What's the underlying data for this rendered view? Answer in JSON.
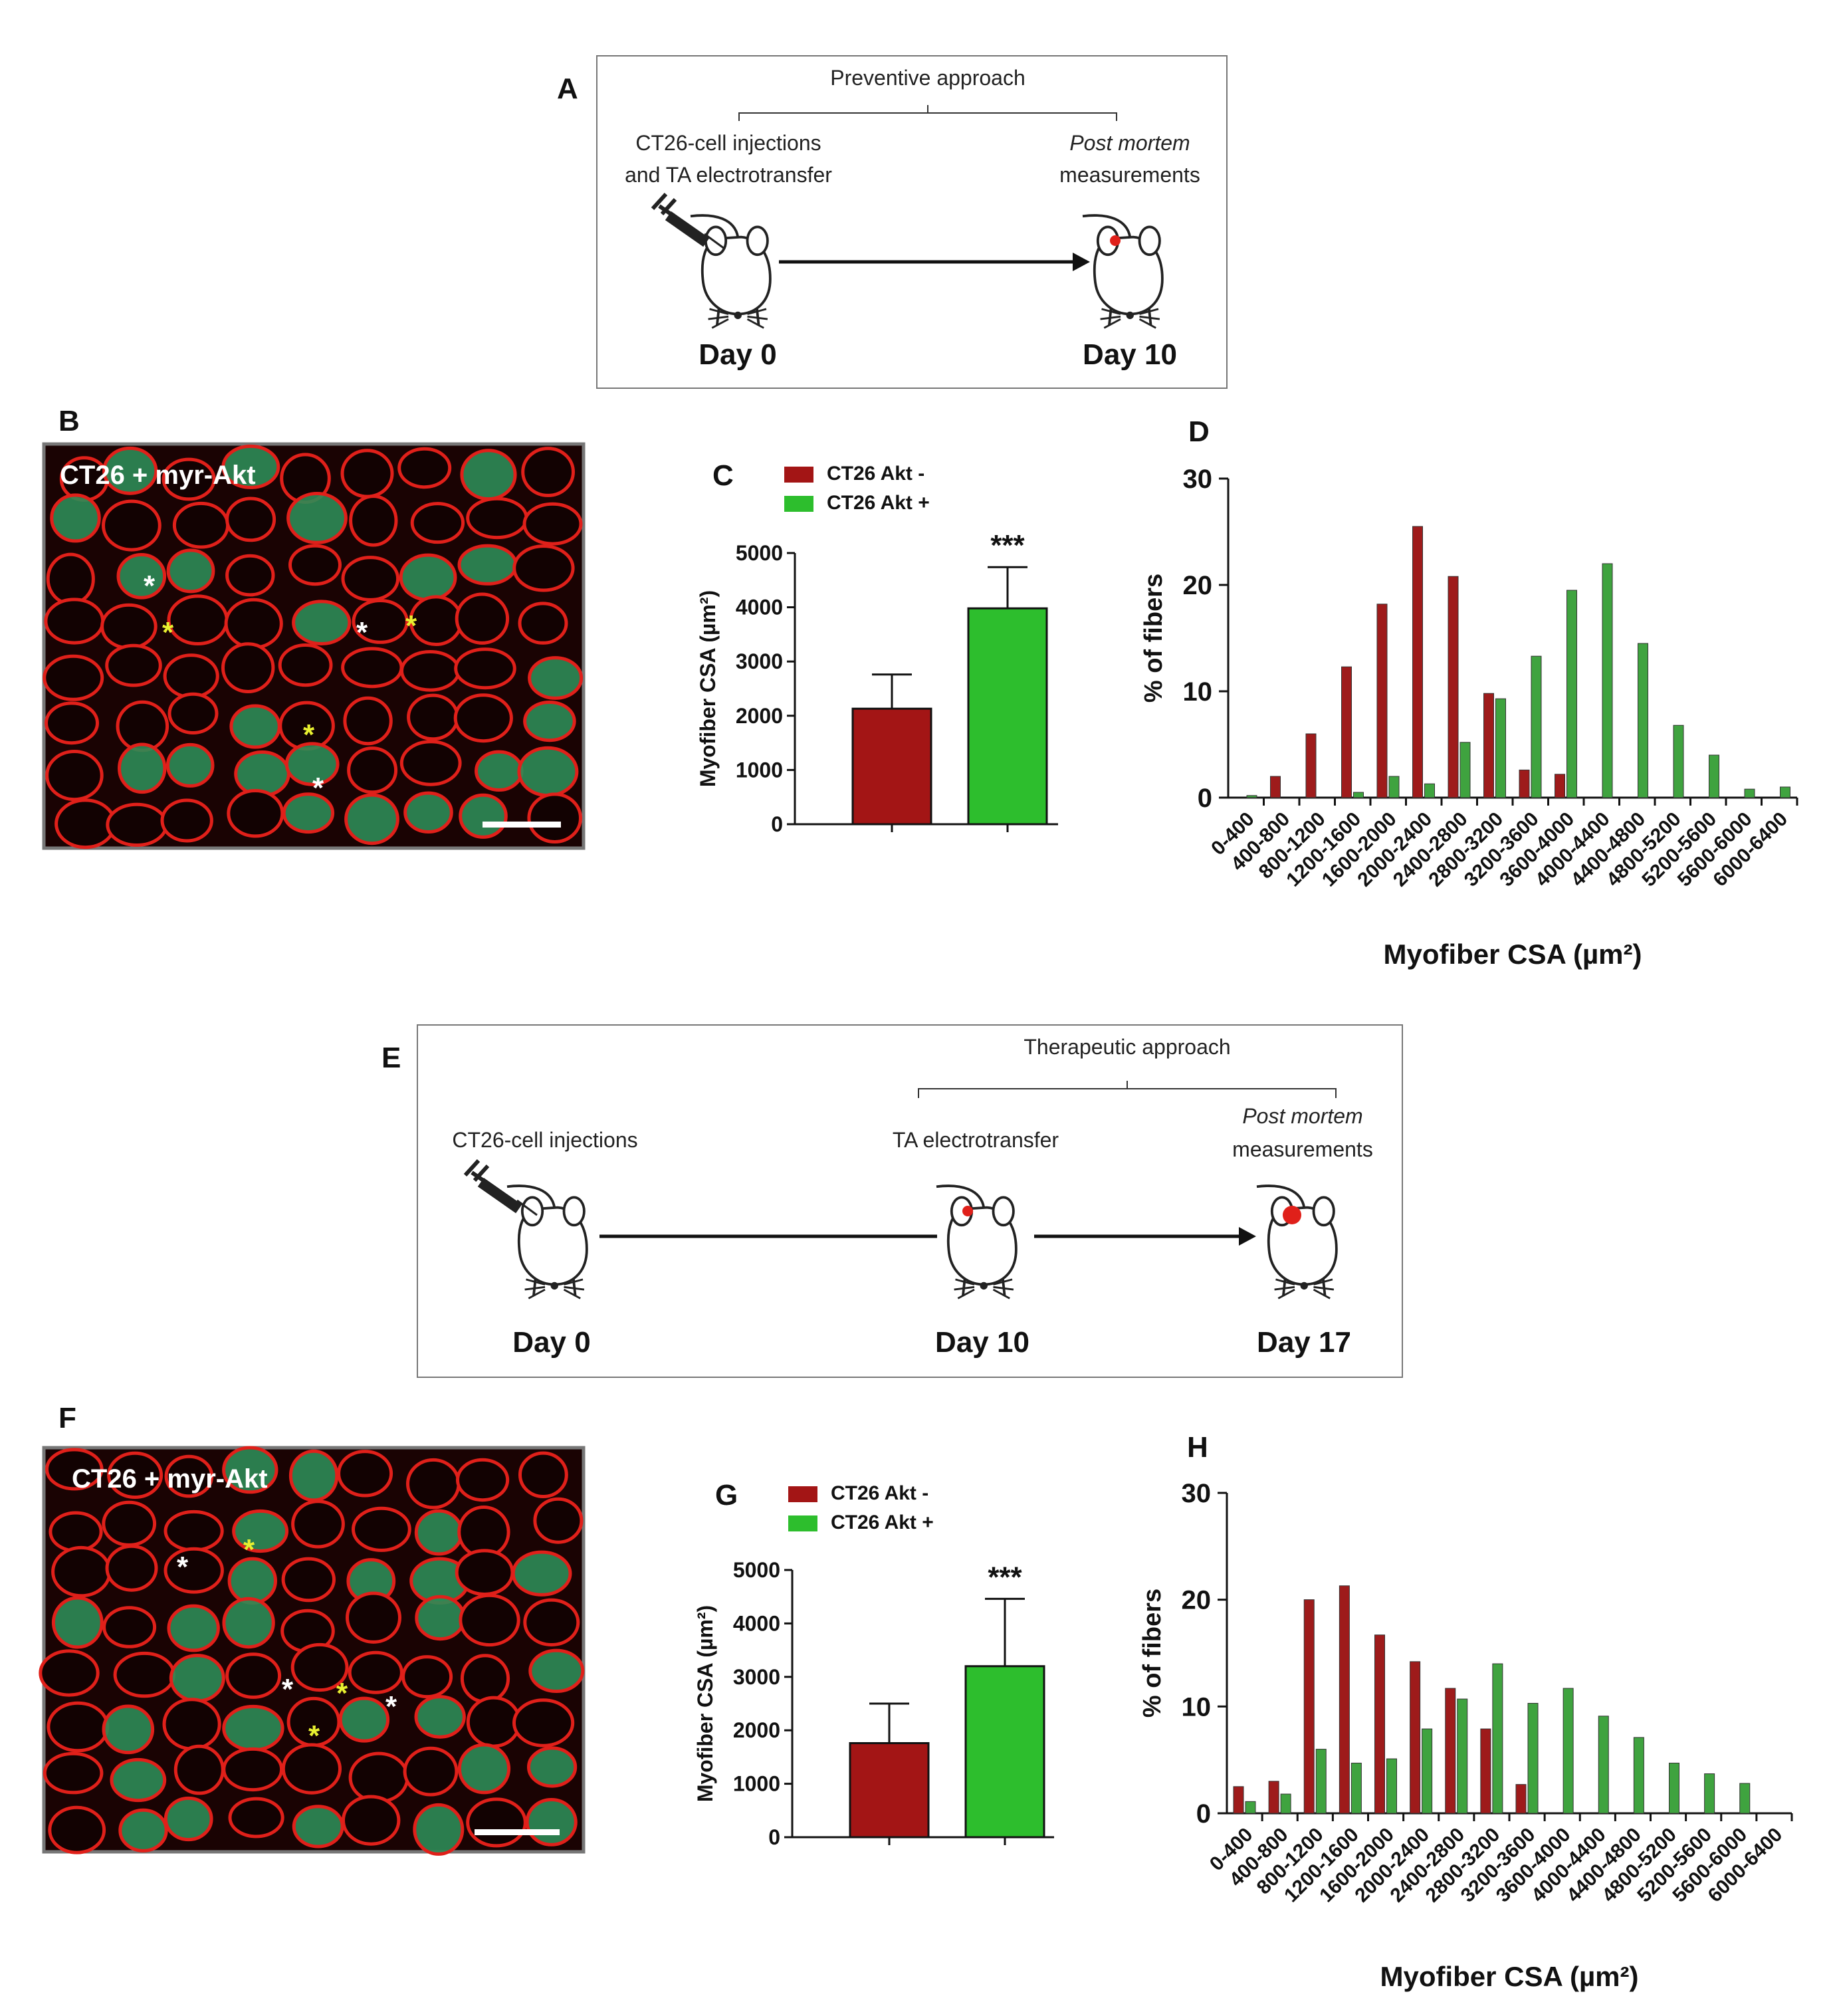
{
  "panels": {
    "A": {
      "letter": "A",
      "approach": "Preventive approach",
      "start_line1": "CT26-cell injections",
      "start_line2": "and TA electrotransfer",
      "end_line1": "Post mortem",
      "end_line2": "measurements",
      "day_start": "Day 0",
      "day_end": "Day 10"
    },
    "B": {
      "letter": "B",
      "image_label": "CT26 + myr-Akt"
    },
    "E": {
      "letter": "E",
      "approach": "Therapeutic approach",
      "start_label": "CT26-cell injections",
      "mid_label": "TA electrotransfer",
      "end_line1": "Post mortem",
      "end_line2": "measurements",
      "day_start": "Day 0",
      "day_mid": "Day 10",
      "day_end": "Day 17"
    },
    "F": {
      "letter": "F",
      "image_label": "CT26 + myr-Akt"
    },
    "C": {
      "letter": "C"
    },
    "D": {
      "letter": "D"
    },
    "G": {
      "letter": "G"
    },
    "H": {
      "letter": "H"
    }
  },
  "colors": {
    "akt_minus": "#A31515",
    "akt_plus": "#2DBE2D",
    "hist_minus": "#9E1B1B",
    "hist_plus": "#3FA33F",
    "membrane": "#E0201A",
    "fiber_green": "#2E8B57"
  },
  "chart_data": [
    {
      "panel": "C",
      "type": "bar",
      "categories": [
        "CT26 Akt -",
        "CT26 Akt +"
      ],
      "values": [
        2130,
        3980
      ],
      "errors": [
        630,
        760
      ],
      "ylabel": "Myofiber CSA (µm²)",
      "ylim": [
        0,
        5000
      ],
      "yticks": [
        "0",
        "1000",
        "2000",
        "3000",
        "4000",
        "5000"
      ],
      "significance": "***",
      "legend": [
        "CT26 Akt -",
        "CT26 Akt +"
      ]
    },
    {
      "panel": "D",
      "type": "bar",
      "categories": [
        "0-400",
        "400-800",
        "800-1200",
        "1200-1600",
        "1600-2000",
        "2000-2400",
        "2400-2800",
        "2800-3200",
        "3200-3600",
        "3600-4000",
        "4000-4400",
        "4400-4800",
        "4800-5200",
        "5200-5600",
        "5600-6000",
        "6000-6400"
      ],
      "series": [
        {
          "name": "CT26 Akt -",
          "values": [
            0,
            2,
            6,
            12.3,
            18.2,
            25.5,
            20.8,
            9.8,
            2.6,
            2.2,
            0,
            0,
            0,
            0,
            0,
            0
          ]
        },
        {
          "name": "CT26 Akt +",
          "values": [
            0.2,
            0,
            0,
            0.5,
            2,
            1.3,
            5.2,
            9.3,
            13.3,
            19.5,
            22,
            14.5,
            6.8,
            4,
            0.8,
            1
          ]
        }
      ],
      "xlabel": "Myofiber CSA (µm²)",
      "ylabel": "% of fibers",
      "ylim": [
        0,
        30
      ],
      "yticks": [
        "0",
        "10",
        "20",
        "30"
      ]
    },
    {
      "panel": "G",
      "type": "bar",
      "categories": [
        "CT26 Akt -",
        "CT26 Akt +"
      ],
      "values": [
        1760,
        3200
      ],
      "errors": [
        740,
        1260
      ],
      "ylabel": "Myofiber CSA (µm²)",
      "ylim": [
        0,
        5000
      ],
      "yticks": [
        "0",
        "1000",
        "2000",
        "3000",
        "4000",
        "5000"
      ],
      "significance": "***",
      "legend": [
        "CT26 Akt -",
        "CT26 Akt +"
      ]
    },
    {
      "panel": "H",
      "type": "bar",
      "categories": [
        "0-400",
        "400-800",
        "800-1200",
        "1200-1600",
        "1600-2000",
        "2000-2400",
        "2400-2800",
        "2800-3200",
        "3200-3600",
        "3600-4000",
        "4000-4400",
        "4400-4800",
        "4800-5200",
        "5200-5600",
        "5600-6000",
        "6000-6400"
      ],
      "series": [
        {
          "name": "CT26 Akt -",
          "values": [
            2.5,
            3,
            20,
            21.3,
            16.7,
            14.2,
            11.7,
            7.9,
            2.7,
            0,
            0,
            0,
            0,
            0,
            0,
            0
          ]
        },
        {
          "name": "CT26 Akt +",
          "values": [
            1.1,
            1.8,
            6,
            4.7,
            5.1,
            7.9,
            10.7,
            14,
            10.3,
            11.7,
            9.1,
            7.1,
            4.7,
            3.7,
            2.8,
            0
          ]
        }
      ],
      "xlabel": "Myofiber CSA (µm²)",
      "ylabel": "% of fibers",
      "ylim": [
        0,
        30
      ],
      "yticks": [
        "0",
        "10",
        "20",
        "30"
      ]
    }
  ]
}
